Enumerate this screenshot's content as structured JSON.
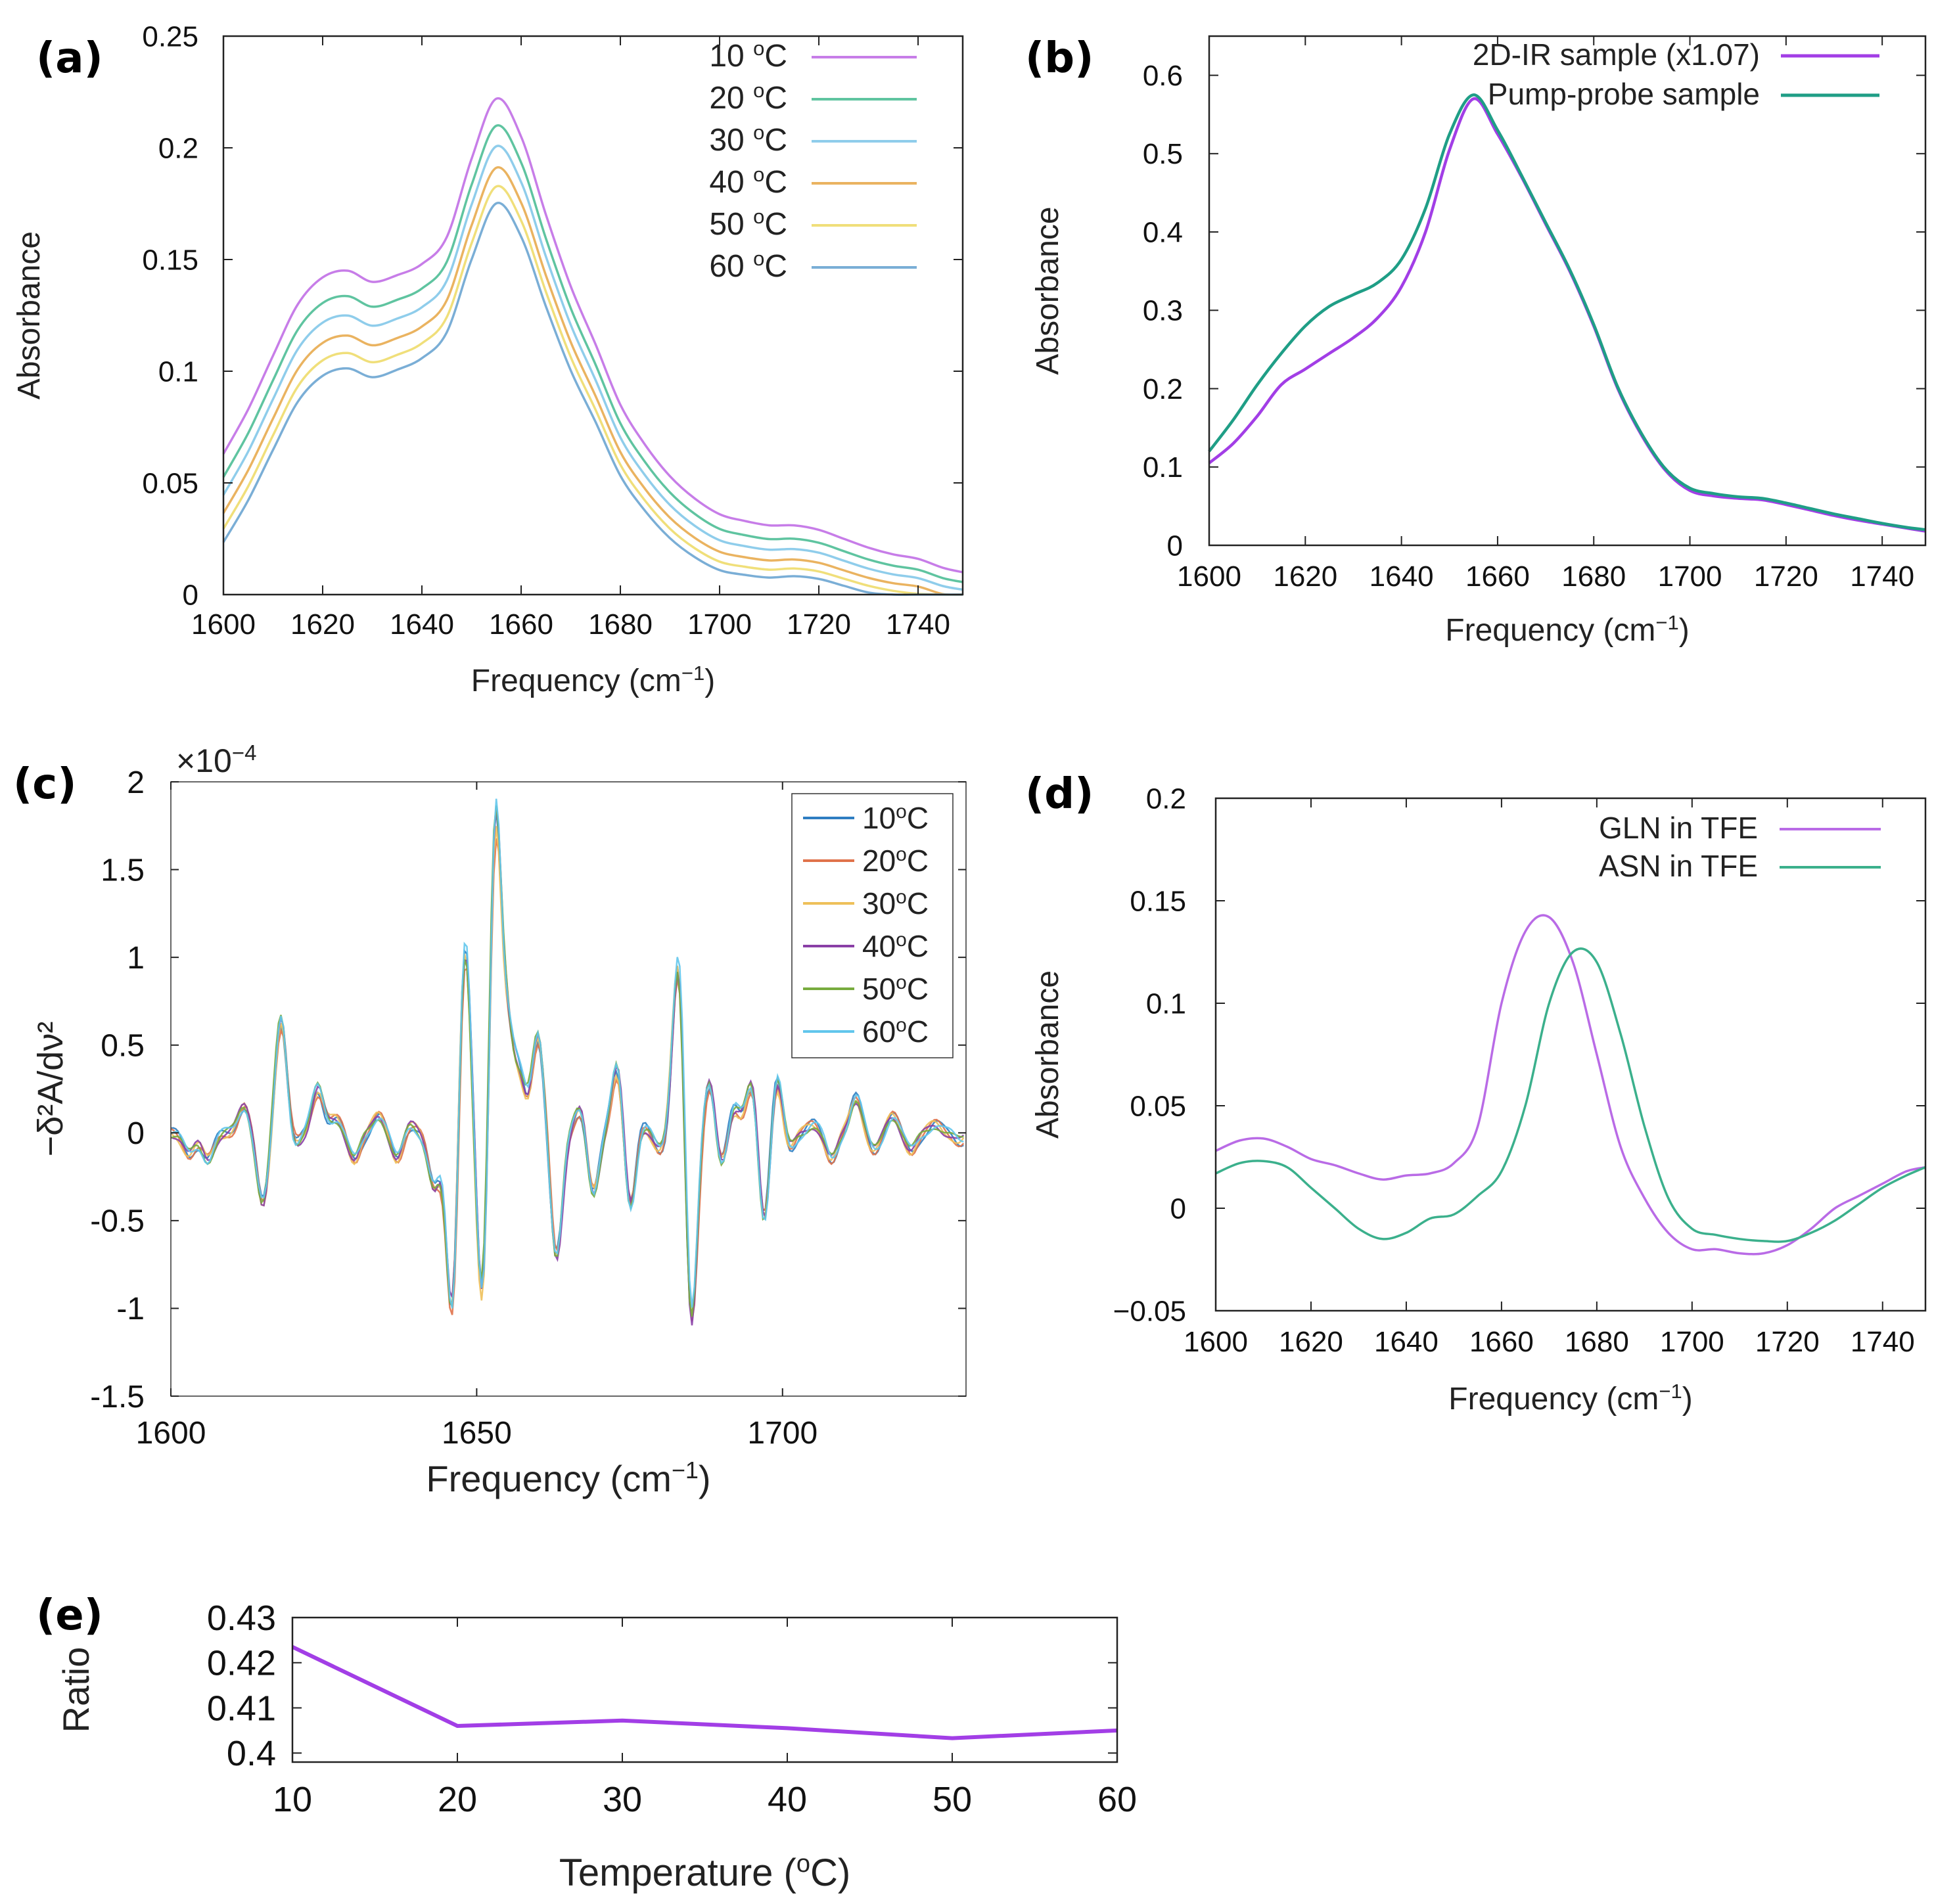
{
  "chart_data": [
    {
      "panel": "(a)",
      "type": "line",
      "xlabel": "Frequency (cm",
      "xlabel_sup": "−1",
      "xlabel_end": ")",
      "ylabel": "Absorbance",
      "xlim": [
        1600,
        1749
      ],
      "ylim": [
        0,
        0.25
      ],
      "xticks": [
        "1600",
        "1620",
        "1640",
        "1660",
        "1680",
        "1700",
        "1720",
        "1740"
      ],
      "yticks": [
        "0",
        "0.05",
        "0.1",
        "0.15",
        "0.2",
        "0.25"
      ],
      "legend_position": "top-right",
      "series": [
        {
          "name": "10 ",
          "sup": "o",
          "unit": "C",
          "color": "#c77de8",
          "offset": 0.0,
          "scale": 1.0
        },
        {
          "name": "20 ",
          "sup": "o",
          "unit": "C",
          "color": "#5fc4a0",
          "offset": -0.009,
          "scale": 0.978
        },
        {
          "name": "30 ",
          "sup": "o",
          "unit": "C",
          "color": "#8fcdeb",
          "offset": -0.016,
          "scale": 0.962
        },
        {
          "name": "40 ",
          "sup": "o",
          "unit": "C",
          "color": "#eab360",
          "offset": -0.023,
          "scale": 0.944
        },
        {
          "name": "50 ",
          "sup": "o",
          "unit": "C",
          "color": "#f0df7a",
          "offset": -0.029,
          "scale": 0.928
        },
        {
          "name": "60 ",
          "sup": "o",
          "unit": "C",
          "color": "#7aaed6",
          "offset": -0.034,
          "scale": 0.912
        }
      ],
      "base_x": [
        1600,
        1605,
        1610,
        1615,
        1620,
        1625,
        1630,
        1635,
        1640,
        1645,
        1650,
        1655,
        1660,
        1665,
        1670,
        1675,
        1680,
        1685,
        1690,
        1695,
        1700,
        1705,
        1710,
        1715,
        1720,
        1725,
        1730,
        1735,
        1740,
        1745,
        1749
      ],
      "base_y": [
        0.063,
        0.083,
        0.107,
        0.13,
        0.142,
        0.145,
        0.14,
        0.143,
        0.148,
        0.16,
        0.195,
        0.222,
        0.205,
        0.17,
        0.138,
        0.112,
        0.085,
        0.067,
        0.053,
        0.043,
        0.036,
        0.033,
        0.031,
        0.031,
        0.029,
        0.025,
        0.021,
        0.018,
        0.016,
        0.012,
        0.01
      ]
    },
    {
      "panel": "(b)",
      "type": "line",
      "xlabel": "Frequency (cm",
      "xlabel_sup": "−1",
      "xlabel_end": ")",
      "ylabel": "Absorbance",
      "xlim": [
        1600,
        1749
      ],
      "ylim": [
        0,
        0.65
      ],
      "xticks": [
        "1600",
        "1620",
        "1640",
        "1660",
        "1680",
        "1700",
        "1720",
        "1740"
      ],
      "yticks": [
        "0",
        "0.1",
        "0.2",
        "0.3",
        "0.4",
        "0.5",
        "0.6"
      ],
      "legend_position": "top-right",
      "x": [
        1600,
        1605,
        1610,
        1615,
        1620,
        1625,
        1630,
        1635,
        1640,
        1645,
        1650,
        1655,
        1660,
        1665,
        1670,
        1675,
        1680,
        1685,
        1690,
        1695,
        1700,
        1705,
        1710,
        1715,
        1720,
        1725,
        1730,
        1735,
        1740,
        1745,
        1749
      ],
      "series": [
        {
          "name": "2D-IR sample (x1.07)",
          "color": "#a23ee6",
          "values": [
            0.105,
            0.13,
            0.165,
            0.205,
            0.225,
            0.245,
            0.265,
            0.29,
            0.33,
            0.4,
            0.505,
            0.57,
            0.525,
            0.47,
            0.41,
            0.35,
            0.28,
            0.2,
            0.14,
            0.095,
            0.07,
            0.063,
            0.06,
            0.058,
            0.052,
            0.045,
            0.038,
            0.032,
            0.027,
            0.022,
            0.018
          ]
        },
        {
          "name": "Pump-probe sample",
          "color": "#1f9e86",
          "values": [
            0.12,
            0.16,
            0.205,
            0.245,
            0.28,
            0.305,
            0.32,
            0.335,
            0.365,
            0.43,
            0.525,
            0.575,
            0.53,
            0.472,
            0.412,
            0.352,
            0.282,
            0.202,
            0.142,
            0.097,
            0.073,
            0.066,
            0.062,
            0.06,
            0.054,
            0.047,
            0.04,
            0.034,
            0.028,
            0.023,
            0.02
          ]
        }
      ]
    },
    {
      "panel": "(c)",
      "type": "line",
      "xlabel": "Frequency (cm",
      "xlabel_sup": "−1",
      "xlabel_end": ")",
      "ylabel": "−δ²A/dν²",
      "multiplier": "×10",
      "multiplier_sup": "−4",
      "xlim": [
        1600,
        1730
      ],
      "ylim": [
        -1.5,
        2.0
      ],
      "xticks": [
        "1600",
        "1650",
        "1700"
      ],
      "yticks": [
        "-1.5",
        "-1",
        "-0.5",
        "0",
        "0.5",
        "1",
        "1.5",
        "2"
      ],
      "legend_position": "top-right",
      "series": [
        {
          "name": "10",
          "sup": "o",
          "unit": "C",
          "color": "#2f7ec2",
          "scale": 1.0
        },
        {
          "name": "20",
          "sup": "o",
          "unit": "C",
          "color": "#e0724a",
          "scale": 0.93
        },
        {
          "name": "30",
          "sup": "o",
          "unit": "C",
          "color": "#eec05a",
          "scale": 0.96
        },
        {
          "name": "40",
          "sup": "o",
          "unit": "C",
          "color": "#8a3fa6",
          "scale": 0.98
        },
        {
          "name": "50",
          "sup": "o",
          "unit": "C",
          "color": "#78ab3e",
          "scale": 1.02
        },
        {
          "name": "60",
          "sup": "o",
          "unit": "C",
          "color": "#62c6ec",
          "scale": 1.06
        }
      ],
      "peaks": [
        [
          1603,
          -0.12
        ],
        [
          1606,
          -0.15
        ],
        [
          1612,
          0.15
        ],
        [
          1615,
          -0.4
        ],
        [
          1618,
          0.65
        ],
        [
          1620,
          -0.08
        ],
        [
          1624,
          0.25
        ],
        [
          1627,
          0.08
        ],
        [
          1630,
          -0.15
        ],
        [
          1634,
          0.1
        ],
        [
          1637,
          -0.15
        ],
        [
          1639,
          0.05
        ],
        [
          1643,
          -0.3
        ],
        [
          1646,
          -1.1
        ],
        [
          1648,
          1.15
        ],
        [
          1651,
          -1.05
        ],
        [
          1653,
          1.85
        ],
        [
          1655,
          0.55
        ],
        [
          1657,
          0.3
        ],
        [
          1660,
          0.55
        ],
        [
          1663,
          -0.7
        ],
        [
          1667,
          0.15
        ],
        [
          1669,
          -0.35
        ],
        [
          1673,
          0.4
        ],
        [
          1675,
          -0.45
        ],
        [
          1677,
          0.05
        ],
        [
          1680,
          -0.1
        ],
        [
          1683,
          1.05
        ],
        [
          1685,
          -1.15
        ],
        [
          1688,
          0.3
        ],
        [
          1690,
          -0.2
        ],
        [
          1692,
          0.15
        ],
        [
          1695,
          0.3
        ],
        [
          1697,
          -0.55
        ],
        [
          1699,
          0.35
        ],
        [
          1701,
          -0.1
        ],
        [
          1705,
          0.05
        ],
        [
          1708,
          -0.15
        ],
        [
          1712,
          0.2
        ],
        [
          1715,
          -0.1
        ],
        [
          1718,
          0.1
        ],
        [
          1721,
          -0.1
        ],
        [
          1725,
          0.05
        ],
        [
          1729,
          -0.05
        ]
      ]
    },
    {
      "panel": "(d)",
      "type": "line",
      "xlabel": "Frequency (cm",
      "xlabel_sup": "−1",
      "xlabel_end": ")",
      "ylabel": "Absorbance",
      "xlim": [
        1600,
        1749
      ],
      "ylim": [
        -0.05,
        0.2
      ],
      "xticks": [
        "1600",
        "1620",
        "1640",
        "1660",
        "1680",
        "1700",
        "1720",
        "1740"
      ],
      "yticks": [
        "−0.05",
        "0",
        "0.05",
        "0.1",
        "0.15",
        "0.2"
      ],
      "legend_position": "top-right",
      "x": [
        1600,
        1605,
        1610,
        1615,
        1620,
        1625,
        1630,
        1635,
        1640,
        1645,
        1650,
        1655,
        1660,
        1665,
        1670,
        1675,
        1680,
        1685,
        1690,
        1695,
        1700,
        1705,
        1710,
        1715,
        1720,
        1725,
        1730,
        1735,
        1740,
        1745,
        1749
      ],
      "series": [
        {
          "name": "GLN in TFE",
          "color": "#b96be6",
          "values": [
            0.028,
            0.033,
            0.034,
            0.03,
            0.024,
            0.021,
            0.017,
            0.014,
            0.016,
            0.017,
            0.022,
            0.04,
            0.1,
            0.135,
            0.142,
            0.12,
            0.075,
            0.03,
            0.005,
            -0.012,
            -0.02,
            -0.02,
            -0.022,
            -0.022,
            -0.018,
            -0.01,
            0.0,
            0.006,
            0.012,
            0.018,
            0.02
          ]
        },
        {
          "name": "ASN in TFE",
          "color": "#3bb08c",
          "values": [
            0.017,
            0.022,
            0.023,
            0.02,
            0.01,
            0.0,
            -0.01,
            -0.015,
            -0.012,
            -0.005,
            -0.003,
            0.006,
            0.018,
            0.05,
            0.1,
            0.125,
            0.12,
            0.085,
            0.04,
            0.005,
            -0.01,
            -0.013,
            -0.015,
            -0.016,
            -0.016,
            -0.012,
            -0.006,
            0.002,
            0.01,
            0.016,
            0.02
          ]
        }
      ]
    },
    {
      "panel": "(e)",
      "type": "line",
      "xlabel": "Temperature (",
      "xlabel_sup": "o",
      "xlabel_end": "C)",
      "ylabel": "Ratio",
      "xlim": [
        10,
        60
      ],
      "ylim": [
        0.398,
        0.43
      ],
      "xticks": [
        "10",
        "20",
        "30",
        "40",
        "50",
        "60"
      ],
      "yticks": [
        "0.4",
        "0.41",
        "0.42",
        "0.43"
      ],
      "series": [
        {
          "name": "",
          "color": "#a23ee6",
          "x": [
            10,
            20,
            30,
            40,
            50,
            60
          ],
          "values": [
            0.4235,
            0.406,
            0.4072,
            0.4055,
            0.4033,
            0.405
          ]
        }
      ]
    }
  ]
}
